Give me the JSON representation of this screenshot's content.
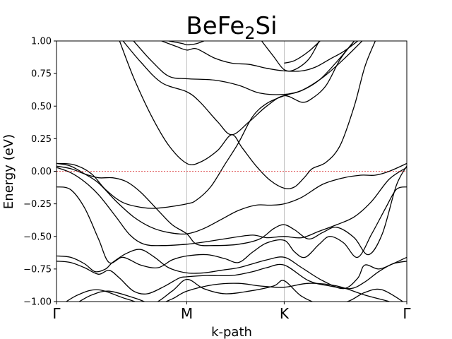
{
  "chart_data": {
    "type": "line",
    "title_main": "BeFe",
    "title_sub": "2",
    "title_tail": "Si",
    "xlabel": "k-path",
    "ylabel": "Energy (eV)",
    "ylim": [
      -1.0,
      1.0
    ],
    "xlim": [
      0,
      1
    ],
    "yticks": [
      -1.0,
      -0.75,
      -0.5,
      -0.25,
      0.0,
      0.25,
      0.5,
      0.75,
      1.0
    ],
    "ytick_labels": [
      "−1.00",
      "−0.75",
      "−0.50",
      "−0.25",
      "0.00",
      "0.25",
      "0.50",
      "0.75",
      "1.00"
    ],
    "kpoints": [
      {
        "label": "Γ",
        "x": 0.0
      },
      {
        "label": "M",
        "x": 0.372
      },
      {
        "label": "K",
        "x": 0.65
      },
      {
        "label": "Γ",
        "x": 1.0
      }
    ],
    "fermi_level": 0.0,
    "series": [
      {
        "values": [
          [
            0.0,
            -1.05
          ],
          [
            0.06,
            -0.95
          ],
          [
            0.12,
            -0.91
          ],
          [
            0.2,
            -0.98
          ],
          [
            0.27,
            -1.02
          ],
          [
            0.33,
            -0.92
          ],
          [
            0.372,
            -0.83
          ],
          [
            0.42,
            -0.9
          ],
          [
            0.48,
            -0.94
          ],
          [
            0.55,
            -0.92
          ],
          [
            0.62,
            -0.88
          ],
          [
            0.65,
            -0.84
          ],
          [
            0.7,
            -0.96
          ],
          [
            0.76,
            -1.02
          ],
          [
            0.83,
            -1.0
          ],
          [
            0.88,
            -0.93
          ],
          [
            0.93,
            -0.91
          ],
          [
            1.0,
            -1.02
          ]
        ]
      },
      {
        "values": [
          [
            0.0,
            -1.06
          ],
          [
            0.05,
            -1.02
          ],
          [
            0.1,
            -0.95
          ],
          [
            0.15,
            -0.92
          ],
          [
            0.22,
            -0.97
          ],
          [
            0.28,
            -1.02
          ],
          [
            0.33,
            -0.98
          ],
          [
            0.372,
            -0.92
          ],
          [
            0.45,
            -0.87
          ],
          [
            0.52,
            -0.86
          ],
          [
            0.58,
            -0.88
          ],
          [
            0.65,
            -0.89
          ],
          [
            0.72,
            -0.86
          ],
          [
            0.8,
            -0.88
          ],
          [
            0.88,
            -0.95
          ],
          [
            0.95,
            -1.0
          ],
          [
            1.0,
            -1.04
          ]
        ]
      },
      {
        "values": [
          [
            0.0,
            -0.69
          ],
          [
            0.04,
            -0.7
          ],
          [
            0.08,
            -0.74
          ],
          [
            0.12,
            -0.79
          ],
          [
            0.15,
            -0.76
          ],
          [
            0.18,
            -0.82
          ],
          [
            0.22,
            -0.92
          ],
          [
            0.26,
            -0.94
          ],
          [
            0.31,
            -0.88
          ],
          [
            0.35,
            -0.82
          ],
          [
            0.372,
            -0.81
          ],
          [
            0.43,
            -0.8
          ],
          [
            0.5,
            -0.8
          ],
          [
            0.56,
            -0.77
          ],
          [
            0.6,
            -0.74
          ],
          [
            0.65,
            -0.72
          ],
          [
            0.72,
            -0.84
          ],
          [
            0.78,
            -0.88
          ],
          [
            0.84,
            -0.9
          ],
          [
            0.88,
            -0.85
          ],
          [
            0.92,
            -0.77
          ],
          [
            0.96,
            -0.71
          ],
          [
            1.0,
            -0.69
          ]
        ]
      },
      {
        "values": [
          [
            0.0,
            -0.65
          ],
          [
            0.04,
            -0.66
          ],
          [
            0.08,
            -0.71
          ],
          [
            0.11,
            -0.77
          ],
          [
            0.14,
            -0.75
          ],
          [
            0.16,
            -0.7
          ],
          [
            0.2,
            -0.63
          ],
          [
            0.24,
            -0.6
          ],
          [
            0.28,
            -0.66
          ],
          [
            0.32,
            -0.74
          ],
          [
            0.372,
            -0.78
          ],
          [
            0.42,
            -0.78
          ],
          [
            0.47,
            -0.76
          ],
          [
            0.52,
            -0.74
          ],
          [
            0.56,
            -0.71
          ],
          [
            0.6,
            -0.68
          ],
          [
            0.65,
            -0.66
          ],
          [
            0.7,
            -0.74
          ],
          [
            0.76,
            -0.84
          ],
          [
            0.82,
            -0.9
          ],
          [
            0.86,
            -0.82
          ],
          [
            0.88,
            -0.72
          ],
          [
            0.92,
            -0.75
          ],
          [
            0.96,
            -0.71
          ],
          [
            1.0,
            -0.66
          ]
        ]
      },
      {
        "values": [
          [
            0.0,
            -0.12
          ],
          [
            0.04,
            -0.14
          ],
          [
            0.08,
            -0.28
          ],
          [
            0.12,
            -0.52
          ],
          [
            0.15,
            -0.7
          ],
          [
            0.19,
            -0.66
          ],
          [
            0.24,
            -0.72
          ],
          [
            0.29,
            -0.74
          ],
          [
            0.33,
            -0.68
          ],
          [
            0.372,
            -0.65
          ],
          [
            0.43,
            -0.64
          ],
          [
            0.48,
            -0.67
          ],
          [
            0.52,
            -0.7
          ],
          [
            0.56,
            -0.62
          ],
          [
            0.6,
            -0.55
          ],
          [
            0.65,
            -0.53
          ],
          [
            0.68,
            -0.62
          ],
          [
            0.71,
            -0.66
          ],
          [
            0.75,
            -0.56
          ],
          [
            0.78,
            -0.5
          ],
          [
            0.82,
            -0.55
          ],
          [
            0.86,
            -0.66
          ],
          [
            0.9,
            -0.48
          ],
          [
            0.94,
            -0.28
          ],
          [
            0.97,
            -0.14
          ],
          [
            1.0,
            -0.12
          ]
        ]
      },
      {
        "values": [
          [
            0.0,
            0.06
          ],
          [
            0.04,
            0.04
          ],
          [
            0.08,
            -0.02
          ],
          [
            0.12,
            -0.09
          ],
          [
            0.17,
            -0.23
          ],
          [
            0.22,
            -0.35
          ],
          [
            0.27,
            -0.43
          ],
          [
            0.32,
            -0.47
          ],
          [
            0.372,
            -0.48
          ],
          [
            0.42,
            -0.44
          ],
          [
            0.47,
            -0.37
          ],
          [
            0.52,
            -0.3
          ],
          [
            0.57,
            -0.26
          ],
          [
            0.61,
            -0.26
          ],
          [
            0.65,
            -0.25
          ],
          [
            0.7,
            -0.2
          ],
          [
            0.76,
            -0.1
          ],
          [
            0.82,
            -0.05
          ],
          [
            0.87,
            -0.03
          ],
          [
            0.91,
            -0.03
          ],
          [
            0.95,
            0.0
          ],
          [
            1.0,
            0.06
          ]
        ]
      },
      {
        "values": [
          [
            0.0,
            0.04
          ],
          [
            0.04,
            0.02
          ],
          [
            0.08,
            -0.02
          ],
          [
            0.12,
            -0.05
          ],
          [
            0.16,
            -0.05
          ],
          [
            0.2,
            -0.08
          ],
          [
            0.24,
            -0.16
          ],
          [
            0.29,
            -0.3
          ],
          [
            0.33,
            -0.41
          ],
          [
            0.372,
            -0.48
          ],
          [
            0.4,
            -0.56
          ],
          [
            0.45,
            -0.57
          ],
          [
            0.52,
            -0.56
          ],
          [
            0.58,
            -0.52
          ],
          [
            0.62,
            -0.44
          ],
          [
            0.65,
            -0.41
          ],
          [
            0.68,
            -0.45
          ],
          [
            0.72,
            -0.52
          ],
          [
            0.76,
            -0.47
          ],
          [
            0.8,
            -0.43
          ],
          [
            0.85,
            -0.51
          ],
          [
            0.89,
            -0.64
          ],
          [
            0.93,
            -0.48
          ],
          [
            0.97,
            -0.11
          ],
          [
            1.0,
            0.04
          ]
        ]
      },
      {
        "values": [
          [
            0.0,
            0.03
          ],
          [
            0.04,
            -0.01
          ],
          [
            0.08,
            -0.08
          ],
          [
            0.12,
            -0.18
          ],
          [
            0.17,
            -0.35
          ],
          [
            0.21,
            -0.49
          ],
          [
            0.25,
            -0.56
          ],
          [
            0.3,
            -0.57
          ],
          [
            0.372,
            -0.56
          ],
          [
            0.43,
            -0.54
          ],
          [
            0.5,
            -0.51
          ],
          [
            0.56,
            -0.49
          ],
          [
            0.6,
            -0.51
          ],
          [
            0.65,
            -0.5
          ],
          [
            0.7,
            -0.51
          ],
          [
            0.75,
            -0.46
          ],
          [
            0.8,
            -0.41
          ],
          [
            0.85,
            -0.35
          ],
          [
            0.9,
            -0.23
          ],
          [
            0.95,
            -0.06
          ],
          [
            1.0,
            0.03
          ]
        ]
      },
      {
        "values": [
          [
            0.0,
            0.06
          ],
          [
            0.05,
            0.05
          ],
          [
            0.1,
            -0.02
          ],
          [
            0.14,
            -0.14
          ],
          [
            0.19,
            -0.24
          ],
          [
            0.25,
            -0.28
          ],
          [
            0.3,
            -0.28
          ],
          [
            0.372,
            -0.25
          ],
          [
            0.4,
            -0.22
          ],
          [
            0.44,
            -0.12
          ],
          [
            0.48,
            0.05
          ],
          [
            0.52,
            0.22
          ],
          [
            0.56,
            0.42
          ],
          [
            0.6,
            0.52
          ],
          [
            0.65,
            0.58
          ],
          [
            0.7,
            0.62
          ],
          [
            0.76,
            0.72
          ],
          [
            0.82,
            0.86
          ],
          [
            0.88,
            1.02
          ]
        ]
      },
      {
        "values": [
          [
            0.18,
            1.0
          ],
          [
            0.22,
            0.72
          ],
          [
            0.27,
            0.43
          ],
          [
            0.32,
            0.2
          ],
          [
            0.372,
            0.06
          ],
          [
            0.41,
            0.07
          ],
          [
            0.46,
            0.16
          ],
          [
            0.5,
            0.28
          ],
          [
            0.53,
            0.18
          ],
          [
            0.57,
            0.04
          ],
          [
            0.61,
            -0.07
          ],
          [
            0.65,
            -0.13
          ],
          [
            0.68,
            -0.12
          ],
          [
            0.71,
            -0.04
          ],
          [
            0.73,
            0.02
          ],
          [
            0.77,
            0.07
          ],
          [
            0.81,
            0.2
          ],
          [
            0.85,
            0.5
          ],
          [
            0.88,
            0.8
          ],
          [
            0.91,
            1.0
          ]
        ]
      },
      {
        "values": [
          [
            0.19,
            1.0
          ],
          [
            0.24,
            0.84
          ],
          [
            0.3,
            0.68
          ],
          [
            0.372,
            0.61
          ],
          [
            0.41,
            0.53
          ],
          [
            0.46,
            0.38
          ],
          [
            0.5,
            0.28
          ],
          [
            0.55,
            0.38
          ],
          [
            0.6,
            0.5
          ],
          [
            0.65,
            0.58
          ],
          [
            0.7,
            0.53
          ],
          [
            0.73,
            0.56
          ],
          [
            0.77,
            0.66
          ],
          [
            0.81,
            0.86
          ],
          [
            0.85,
            1.0
          ]
        ]
      },
      {
        "values": [
          [
            0.22,
            1.0
          ],
          [
            0.27,
            0.85
          ],
          [
            0.32,
            0.73
          ],
          [
            0.372,
            0.71
          ],
          [
            0.45,
            0.7
          ],
          [
            0.52,
            0.66
          ],
          [
            0.58,
            0.6
          ],
          [
            0.65,
            0.59
          ],
          [
            0.7,
            0.62
          ],
          [
            0.75,
            0.7
          ],
          [
            0.8,
            0.84
          ],
          [
            0.85,
            1.0
          ]
        ]
      },
      {
        "values": [
          [
            0.3,
            1.0
          ],
          [
            0.34,
            0.96
          ],
          [
            0.372,
            0.93
          ],
          [
            0.4,
            0.94
          ],
          [
            0.45,
            0.87
          ],
          [
            0.5,
            0.83
          ],
          [
            0.55,
            0.82
          ],
          [
            0.6,
            0.79
          ],
          [
            0.65,
            0.77
          ],
          [
            0.7,
            0.77
          ],
          [
            0.74,
            0.8
          ],
          [
            0.78,
            0.86
          ],
          [
            0.82,
            0.92
          ],
          [
            0.86,
            1.0
          ]
        ]
      },
      {
        "values": [
          [
            0.32,
            1.0
          ],
          [
            0.36,
            0.98
          ],
          [
            0.372,
            0.97
          ],
          [
            0.4,
            0.98
          ],
          [
            0.44,
            1.02
          ]
        ]
      },
      {
        "values": [
          [
            0.58,
            1.02
          ],
          [
            0.62,
            0.88
          ],
          [
            0.65,
            0.78
          ],
          [
            0.68,
            0.78
          ],
          [
            0.72,
            0.86
          ],
          [
            0.75,
            1.0
          ]
        ]
      },
      {
        "values": [
          [
            0.76,
            1.02
          ],
          [
            0.72,
            0.92
          ],
          [
            0.68,
            0.85
          ],
          [
            0.65,
            0.83
          ]
        ]
      }
    ]
  }
}
